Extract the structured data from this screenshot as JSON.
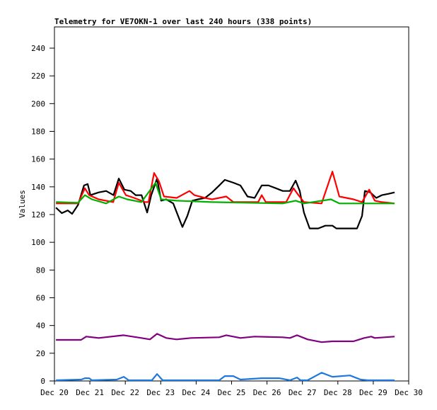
{
  "chart_data": {
    "type": "line",
    "title": "Telemetry for VE7OKN-1 over last 240 hours (338 points)",
    "xlabel": "",
    "ylabel": "Values",
    "xlim_hours": [
      0,
      240
    ],
    "ylim": [
      0,
      255
    ],
    "yticks": [
      0,
      20,
      40,
      60,
      80,
      100,
      120,
      140,
      160,
      180,
      200,
      220,
      240
    ],
    "xtick_labels": [
      "Dec 20",
      "Dec 21",
      "Dec 22",
      "Dec 23",
      "Dec 24",
      "Dec 25",
      "Dec 26",
      "Dec 27",
      "Dec 28",
      "Dec 29",
      "Dec 30"
    ],
    "grid": false,
    "legend": "none",
    "x_unit": "hours since Dec 20 00:00",
    "series": [
      {
        "name": "black",
        "color": "#000000",
        "points": [
          [
            1,
            125
          ],
          [
            5,
            121
          ],
          [
            9,
            123
          ],
          [
            12,
            120.5
          ],
          [
            16,
            127
          ],
          [
            20,
            141
          ],
          [
            22.5,
            142
          ],
          [
            24.4,
            134
          ],
          [
            30,
            136
          ],
          [
            35,
            137
          ],
          [
            40,
            134
          ],
          [
            43.6,
            146
          ],
          [
            47.4,
            138
          ],
          [
            51.7,
            137
          ],
          [
            55,
            134
          ],
          [
            59,
            134
          ],
          [
            62.8,
            121.5
          ],
          [
            65.6,
            134
          ],
          [
            69.5,
            146
          ],
          [
            72.3,
            130
          ],
          [
            75.7,
            131
          ],
          [
            80.5,
            128
          ],
          [
            86.7,
            111
          ],
          [
            90,
            119
          ],
          [
            93.4,
            130
          ],
          [
            97.2,
            131
          ],
          [
            102,
            132
          ],
          [
            106.8,
            136
          ],
          [
            111.6,
            141
          ],
          [
            115.4,
            145
          ],
          [
            121.2,
            143
          ],
          [
            126,
            141
          ],
          [
            130.8,
            133
          ],
          [
            135.6,
            132
          ],
          [
            140.4,
            141
          ],
          [
            145,
            141
          ],
          [
            150,
            139
          ],
          [
            154.7,
            137
          ],
          [
            159.5,
            137
          ],
          [
            163.4,
            144.5
          ],
          [
            166.2,
            137
          ],
          [
            169,
            121.5
          ],
          [
            172.9,
            110
          ],
          [
            178.7,
            110
          ],
          [
            183.5,
            112
          ],
          [
            188.3,
            112
          ],
          [
            191,
            110
          ],
          [
            197.8,
            110
          ],
          [
            205,
            110
          ],
          [
            208.4,
            119
          ],
          [
            210.3,
            137
          ],
          [
            214,
            136
          ],
          [
            218,
            132
          ],
          [
            221.8,
            134
          ],
          [
            226.6,
            135
          ],
          [
            230.4,
            136
          ]
        ]
      },
      {
        "name": "red",
        "color": "#ff0000",
        "points": [
          [
            1,
            128
          ],
          [
            16,
            128
          ],
          [
            20.6,
            139
          ],
          [
            23.5,
            134
          ],
          [
            30,
            131
          ],
          [
            39.8,
            129
          ],
          [
            43.6,
            143
          ],
          [
            48.4,
            134
          ],
          [
            54,
            132
          ],
          [
            61.3,
            129
          ],
          [
            63.7,
            129
          ],
          [
            67.5,
            150
          ],
          [
            70.8,
            144
          ],
          [
            74.2,
            133
          ],
          [
            82.8,
            132
          ],
          [
            91.5,
            137
          ],
          [
            94.8,
            134
          ],
          [
            102,
            132
          ],
          [
            106.8,
            131
          ],
          [
            116.4,
            133
          ],
          [
            121.2,
            129
          ],
          [
            138,
            129
          ],
          [
            140.4,
            134
          ],
          [
            143.2,
            129
          ],
          [
            157,
            129
          ],
          [
            161.9,
            139
          ],
          [
            165.3,
            134
          ],
          [
            169,
            129
          ],
          [
            181,
            128
          ],
          [
            188.3,
            151
          ],
          [
            193,
            133
          ],
          [
            202.6,
            131
          ],
          [
            208.4,
            129
          ],
          [
            213.2,
            138
          ],
          [
            217,
            130
          ],
          [
            221.8,
            129
          ],
          [
            230.4,
            128
          ]
        ]
      },
      {
        "name": "green",
        "color": "#00b000",
        "points": [
          [
            1,
            129
          ],
          [
            16,
            128.5
          ],
          [
            20.6,
            134
          ],
          [
            25.4,
            131
          ],
          [
            35,
            128
          ],
          [
            43.6,
            133
          ],
          [
            49.3,
            131
          ],
          [
            58.9,
            129
          ],
          [
            68.5,
            143
          ],
          [
            72.3,
            131
          ],
          [
            82.8,
            130
          ],
          [
            106.8,
            129
          ],
          [
            154.7,
            128
          ],
          [
            163.4,
            130
          ],
          [
            169,
            128
          ],
          [
            187.3,
            131
          ],
          [
            193,
            128
          ],
          [
            230.4,
            128
          ]
        ]
      },
      {
        "name": "purple",
        "color": "#800080",
        "points": [
          [
            1,
            29.6
          ],
          [
            18,
            29.6
          ],
          [
            21.5,
            32
          ],
          [
            30,
            31
          ],
          [
            46.9,
            33
          ],
          [
            58.9,
            31
          ],
          [
            64.7,
            30
          ],
          [
            69.5,
            34
          ],
          [
            75.7,
            31
          ],
          [
            82.8,
            30
          ],
          [
            92.5,
            31
          ],
          [
            111.6,
            31.5
          ],
          [
            116.4,
            33
          ],
          [
            126,
            31
          ],
          [
            135.6,
            32
          ],
          [
            154.7,
            31.5
          ],
          [
            159.5,
            31
          ],
          [
            164.3,
            33
          ],
          [
            171.5,
            30
          ],
          [
            181,
            28
          ],
          [
            188.3,
            28.6
          ],
          [
            202.6,
            28.6
          ],
          [
            209.8,
            31
          ],
          [
            214.6,
            32
          ],
          [
            217,
            31
          ],
          [
            230.4,
            32
          ]
        ]
      },
      {
        "name": "blue",
        "color": "#1e78dc",
        "points": [
          [
            1,
            0.5
          ],
          [
            18.2,
            1
          ],
          [
            20.6,
            2
          ],
          [
            23.5,
            2
          ],
          [
            25.4,
            0.5
          ],
          [
            42.2,
            1
          ],
          [
            47,
            3
          ],
          [
            50.3,
            0.5
          ],
          [
            66,
            0.5
          ],
          [
            69.5,
            5
          ],
          [
            73.3,
            0.5
          ],
          [
            111.6,
            0.5
          ],
          [
            115.4,
            3.5
          ],
          [
            121.2,
            3.5
          ],
          [
            126,
            1
          ],
          [
            140.4,
            2
          ],
          [
            152.3,
            2
          ],
          [
            159.5,
            0.5
          ],
          [
            164.3,
            2.5
          ],
          [
            166.7,
            0.5
          ],
          [
            171.5,
            0.5
          ],
          [
            181,
            6
          ],
          [
            188.3,
            3
          ],
          [
            200.2,
            4
          ],
          [
            207.4,
            1
          ],
          [
            212.2,
            0.5
          ],
          [
            230.4,
            0.5
          ]
        ]
      }
    ]
  }
}
